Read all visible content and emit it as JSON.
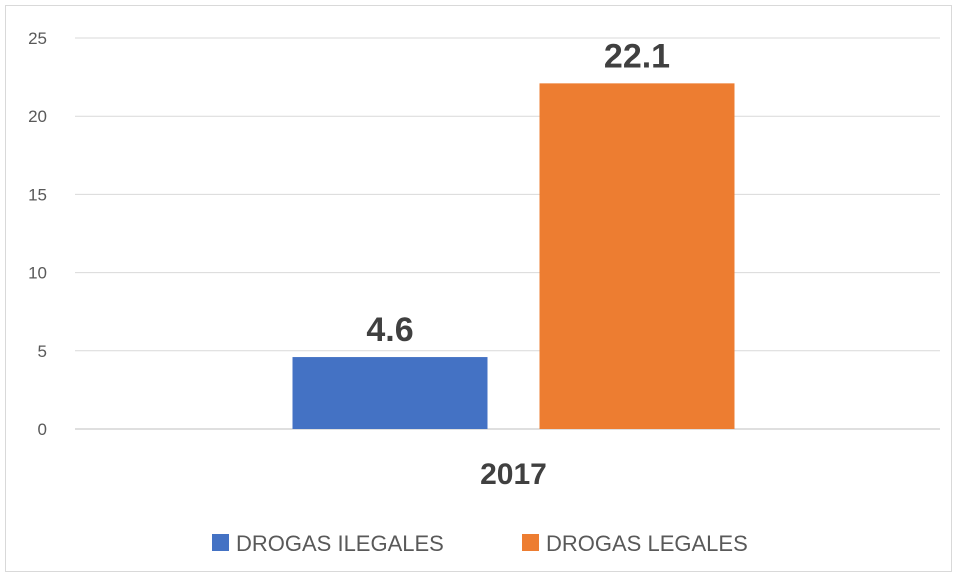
{
  "chart_data": {
    "type": "bar",
    "categories": [
      "2017"
    ],
    "series": [
      {
        "name": "DROGAS ILEGALES",
        "values": [
          4.6
        ],
        "color": "#4472C4"
      },
      {
        "name": "DROGAS LEGALES",
        "values": [
          22.1
        ],
        "color": "#ED7D31"
      }
    ],
    "y_ticks": [
      "0",
      "5",
      "10",
      "15",
      "20",
      "25"
    ],
    "ylim": [
      0,
      25
    ],
    "data_labels": [
      "4.6",
      "22.1"
    ],
    "grid": true,
    "legend_position": "bottom"
  }
}
